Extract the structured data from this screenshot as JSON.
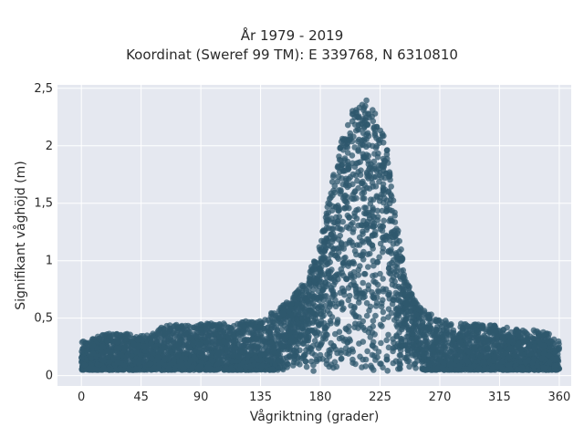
{
  "chart_data": {
    "type": "scatter",
    "title": "År 1979 - 2019",
    "subtitle": "Koordinat (Sweref 99 TM): E 339768, N 6310810",
    "xlabel": "Vågriktning (grader)",
    "ylabel": "Signifikant våghöjd (m)",
    "xlim": [
      -18,
      369
    ],
    "ylim": [
      -0.09,
      2.53
    ],
    "x_ticks": [
      0,
      45,
      90,
      135,
      180,
      225,
      270,
      315,
      360
    ],
    "x_tick_labels": [
      "0",
      "45",
      "90",
      "135",
      "180",
      "225",
      "270",
      "315",
      "360"
    ],
    "y_ticks": [
      0,
      0.5,
      1,
      1.5,
      2,
      2.5
    ],
    "y_tick_labels": [
      "0",
      "0,5",
      "1",
      "1,5",
      "2",
      "2,5"
    ],
    "grid": true,
    "series": [
      {
        "marker_color": "#2f586e",
        "x": [
          0,
          10,
          20,
          30,
          40,
          50,
          60,
          70,
          80,
          90,
          100,
          110,
          120,
          130,
          140,
          150,
          160,
          170,
          180,
          185,
          190,
          195,
          200,
          205,
          210,
          215,
          220,
          225,
          230,
          235,
          240,
          245,
          250,
          260,
          270,
          280,
          290,
          300,
          310,
          320,
          330,
          340,
          350,
          360
        ],
        "y_max": [
          0.3,
          0.33,
          0.37,
          0.38,
          0.36,
          0.35,
          0.42,
          0.45,
          0.44,
          0.45,
          0.46,
          0.45,
          0.47,
          0.48,
          0.52,
          0.6,
          0.7,
          0.85,
          1.15,
          1.45,
          1.75,
          2.0,
          2.22,
          2.33,
          2.38,
          2.4,
          2.32,
          2.2,
          2.0,
          1.6,
          1.15,
          0.85,
          0.68,
          0.55,
          0.5,
          0.46,
          0.45,
          0.45,
          0.44,
          0.42,
          0.4,
          0.4,
          0.38,
          0.3
        ],
        "y_min": 0.0
      }
    ]
  }
}
